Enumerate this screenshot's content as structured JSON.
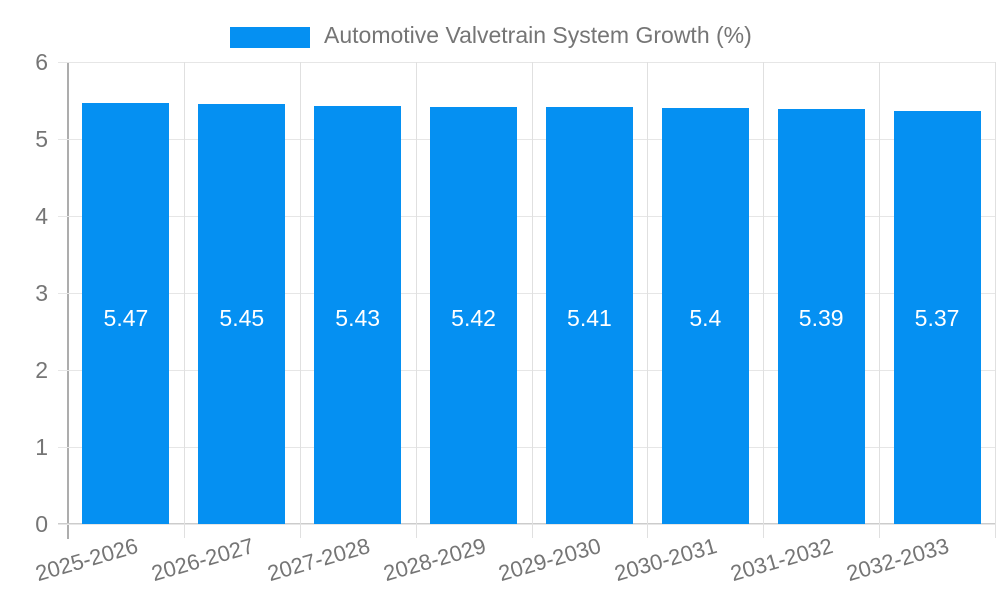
{
  "legend": {
    "label": "Automotive Valvetrain System Growth (%)"
  },
  "chart_data": {
    "type": "bar",
    "title": "Automotive Valvetrain System Growth (%)",
    "categories": [
      "2025-2026",
      "2026-2027",
      "2027-2028",
      "2028-2029",
      "2029-2030",
      "2030-2031",
      "2031-2032",
      "2032-2033"
    ],
    "values": [
      5.47,
      5.45,
      5.43,
      5.42,
      5.41,
      5.4,
      5.39,
      5.37
    ],
    "value_labels": [
      "5.47",
      "5.45",
      "5.43",
      "5.42",
      "5.41",
      "5.4",
      "5.39",
      "5.37"
    ],
    "xlabel": "",
    "ylabel": "",
    "ylim": [
      0,
      6
    ],
    "y_ticks": [
      0,
      1,
      2,
      3,
      4,
      5,
      6
    ],
    "grid": true,
    "legend_position": "top",
    "colors": {
      "bar": "#0590f2",
      "value_label": "#ffffff",
      "axis_text": "#757575",
      "gridline": "#e6e6e6",
      "axis_line": "#adadad"
    }
  }
}
